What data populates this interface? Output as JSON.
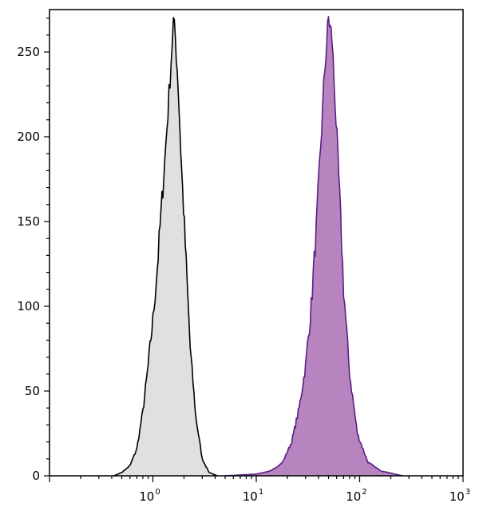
{
  "chart_data": {
    "type": "area",
    "x_scale": "log",
    "x_range": [
      0.1,
      1000
    ],
    "y_range": [
      0,
      275
    ],
    "y_ticks": [
      0,
      50,
      100,
      150,
      200,
      250
    ],
    "y_tick_labels": [
      "0",
      "50",
      "100",
      "150",
      "200",
      "250"
    ],
    "x_ticks": [
      {
        "value": 1,
        "base": "10",
        "exp": "0"
      },
      {
        "value": 10,
        "base": "10",
        "exp": "1"
      },
      {
        "value": 100,
        "base": "10",
        "exp": "2"
      },
      {
        "value": 1000,
        "base": "10",
        "exp": "3"
      }
    ],
    "grid": false,
    "series": [
      {
        "fill": "#e0e0e0",
        "stroke": "#000000",
        "points": [
          [
            0.42,
            0
          ],
          [
            0.5,
            2
          ],
          [
            0.6,
            6
          ],
          [
            0.7,
            16
          ],
          [
            0.8,
            38
          ],
          [
            0.9,
            65
          ],
          [
            1.0,
            92
          ],
          [
            1.1,
            122
          ],
          [
            1.2,
            155
          ],
          [
            1.3,
            185
          ],
          [
            1.4,
            215
          ],
          [
            1.5,
            245
          ],
          [
            1.58,
            268
          ],
          [
            1.65,
            258
          ],
          [
            1.75,
            232
          ],
          [
            1.9,
            180
          ],
          [
            2.1,
            125
          ],
          [
            2.3,
            75
          ],
          [
            2.6,
            35
          ],
          [
            3.0,
            10
          ],
          [
            3.5,
            2
          ],
          [
            4.2,
            0
          ]
        ]
      },
      {
        "fill": "#b784bf",
        "stroke": "#5a1e84",
        "points": [
          [
            5,
            0
          ],
          [
            10,
            1
          ],
          [
            14,
            3
          ],
          [
            18,
            8
          ],
          [
            22,
            20
          ],
          [
            26,
            40
          ],
          [
            30,
            65
          ],
          [
            34,
            100
          ],
          [
            38,
            145
          ],
          [
            42,
            195
          ],
          [
            46,
            240
          ],
          [
            50,
            270
          ],
          [
            54,
            258
          ],
          [
            58,
            220
          ],
          [
            64,
            165
          ],
          [
            70,
            110
          ],
          [
            80,
            60
          ],
          [
            95,
            25
          ],
          [
            120,
            8
          ],
          [
            160,
            3
          ],
          [
            220,
            1
          ],
          [
            260,
            0
          ]
        ]
      }
    ]
  }
}
